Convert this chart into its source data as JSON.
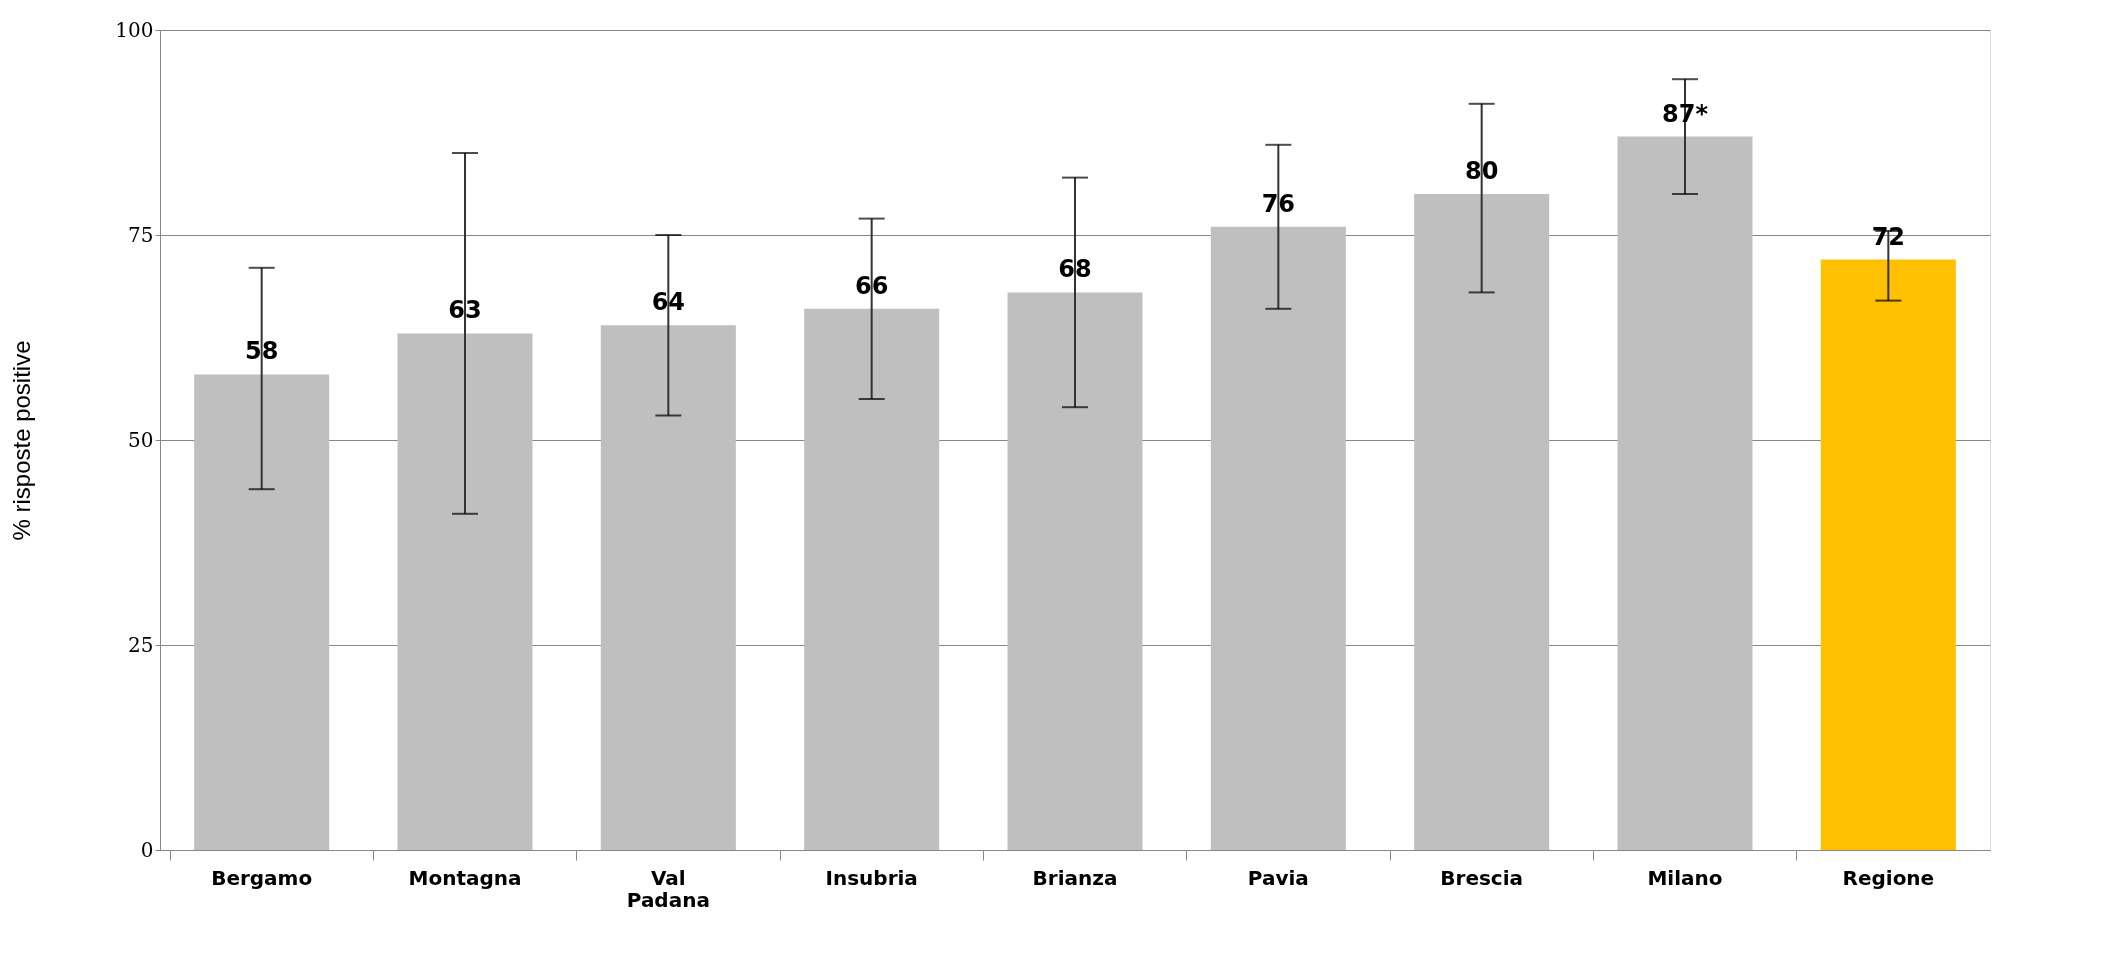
{
  "chart_data": {
    "type": "bar",
    "ylabel": "% risposte positive",
    "categories": [
      "Bergamo",
      "Montagna",
      "Val Padana",
      "Insubria",
      "Brianza",
      "Pavia",
      "Brescia",
      "Milano",
      "Regione"
    ],
    "values": [
      58,
      63,
      64,
      66,
      68,
      76,
      80,
      87,
      72
    ],
    "value_labels": [
      "58",
      "63",
      "64",
      "66",
      "68",
      "76",
      "80",
      "87*",
      "72"
    ],
    "colors": [
      "#bfbfbf",
      "#bfbfbf",
      "#bfbfbf",
      "#bfbfbf",
      "#bfbfbf",
      "#bfbfbf",
      "#bfbfbf",
      "#bfbfbf",
      "#ffc000"
    ],
    "errors": [
      [
        44,
        71
      ],
      [
        41,
        85
      ],
      [
        53,
        75
      ],
      [
        55,
        77
      ],
      [
        54,
        82
      ],
      [
        66,
        86
      ],
      [
        68,
        91
      ],
      [
        80,
        94
      ],
      [
        67,
        75.5
      ]
    ],
    "ylim": [
      0,
      100
    ],
    "yticks": [
      0,
      25,
      50,
      75,
      100
    ],
    "grid": "y"
  }
}
